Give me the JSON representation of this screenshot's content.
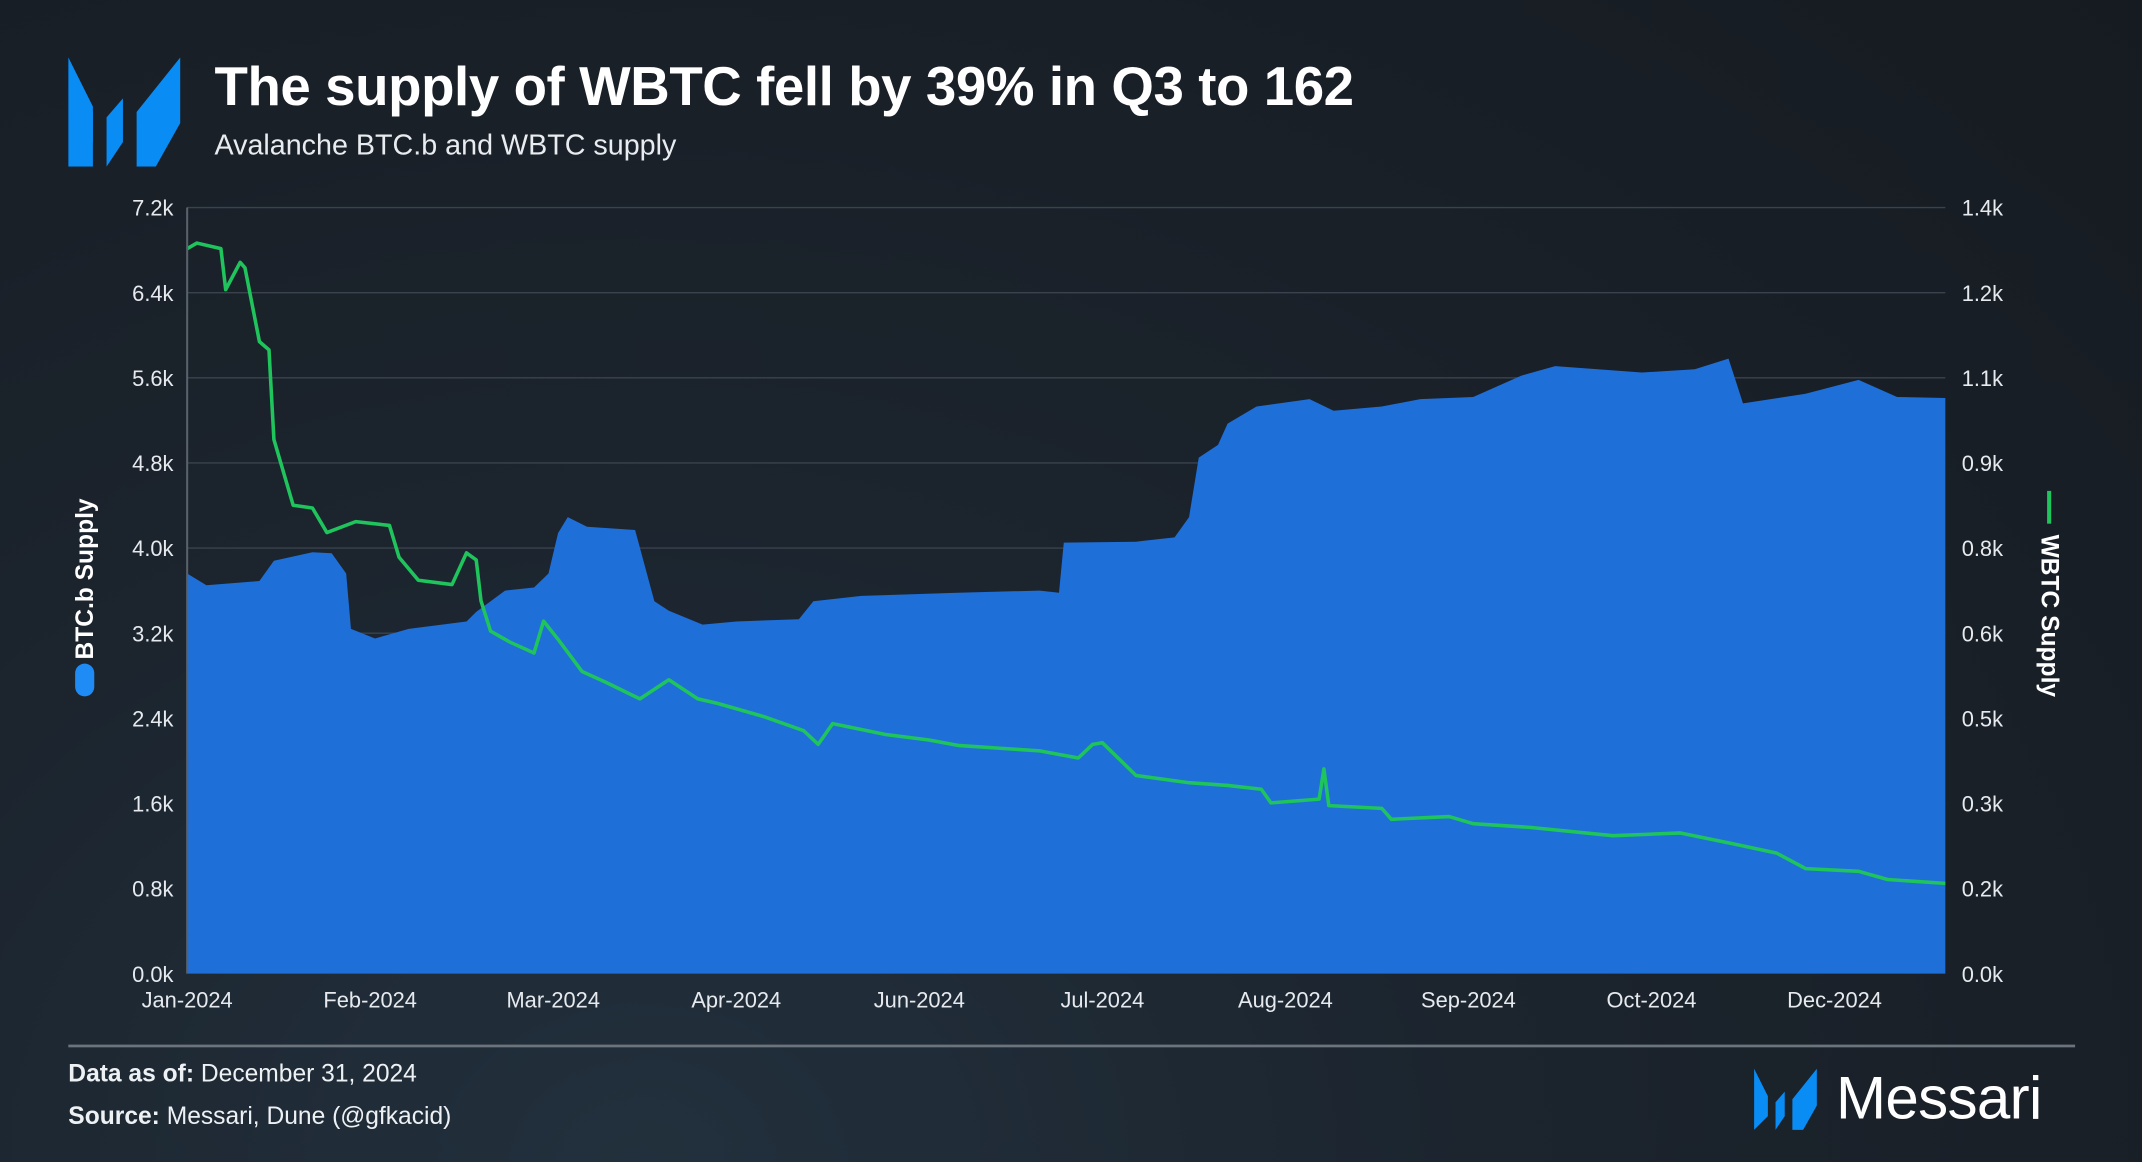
{
  "header": {
    "title": "The supply of WBTC fell by 39% in Q3 to 162",
    "subtitle": "Avalanche BTC.b and WBTC supply"
  },
  "footer": {
    "data_as_of_label": "Data as of:",
    "data_as_of_value": "December 31, 2024",
    "source_label": "Source:",
    "source_value": "Messari, Dune (@gfkacid)",
    "brand": "Messari"
  },
  "colors": {
    "btcb": "#1f6fd9",
    "wbtc": "#1fc45c",
    "logo": "#0a8cf5",
    "grid": "#3a434d"
  },
  "chart_data": {
    "type": "area+line",
    "title": "The supply of WBTC fell by 39% in Q3 to 162",
    "subtitle": "Avalanche BTC.b and WBTC supply",
    "x_unit": "day of 2024",
    "xlim": [
      0,
      365
    ],
    "x_ticks": [
      {
        "day": 0,
        "label": "Jan-2024"
      },
      {
        "day": 38,
        "label": "Feb-2024"
      },
      {
        "day": 76,
        "label": "Mar-2024"
      },
      {
        "day": 114,
        "label": "Apr-2024"
      },
      {
        "day": 152,
        "label": "Jun-2024"
      },
      {
        "day": 190,
        "label": "Jul-2024"
      },
      {
        "day": 228,
        "label": "Aug-2024"
      },
      {
        "day": 266,
        "label": "Sep-2024"
      },
      {
        "day": 304,
        "label": "Oct-2024"
      },
      {
        "day": 342,
        "label": "Dec-2024"
      }
    ],
    "y_left": {
      "label": "BTC.b Supply",
      "lim": [
        0,
        7200
      ],
      "ticks": [
        0,
        800,
        1600,
        2400,
        3200,
        4000,
        4800,
        5600,
        6400,
        7200
      ],
      "tick_labels": [
        "0.0k",
        "0.8k",
        "1.6k",
        "2.4k",
        "3.2k",
        "4.0k",
        "4.8k",
        "5.6k",
        "6.4k",
        "7.2k"
      ]
    },
    "y_right": {
      "label": "WBTC Supply",
      "lim": [
        0,
        1400
      ],
      "ticks": [
        0,
        200,
        300,
        500,
        600,
        800,
        900,
        1100,
        1200,
        1400
      ],
      "tick_labels": [
        "0.0k",
        "0.2k",
        "0.3k",
        "0.5k",
        "0.6k",
        "0.8k",
        "0.9k",
        "1.1k",
        "1.2k",
        "1.4k"
      ]
    },
    "grid": true,
    "series": [
      {
        "name": "BTC.b Supply",
        "axis": "left",
        "style": "area",
        "x": [
          0,
          4,
          15,
          18,
          26,
          30,
          33,
          34,
          39,
          46,
          58,
          60,
          66,
          72,
          75,
          77,
          79,
          83,
          93,
          97,
          100,
          107,
          114,
          127,
          130,
          140,
          160,
          177,
          181,
          182,
          197,
          205,
          208,
          210,
          214,
          216,
          222,
          233,
          238,
          248,
          256,
          267,
          277,
          284,
          302,
          313,
          320,
          323,
          336,
          347,
          355,
          365
        ],
        "y": [
          3760,
          3650,
          3690,
          3880,
          3960,
          3950,
          3760,
          3240,
          3150,
          3240,
          3310,
          3400,
          3600,
          3630,
          3760,
          4140,
          4290,
          4200,
          4170,
          3500,
          3410,
          3280,
          3310,
          3330,
          3500,
          3550,
          3580,
          3600,
          3580,
          4050,
          4060,
          4100,
          4290,
          4850,
          4970,
          5170,
          5330,
          5400,
          5290,
          5330,
          5400,
          5420,
          5620,
          5710,
          5650,
          5680,
          5780,
          5360,
          5450,
          5580,
          5420,
          5410
        ]
      },
      {
        "name": "WBTC Supply",
        "axis": "right",
        "style": "line",
        "x": [
          0,
          2,
          7,
          8,
          11,
          12,
          15,
          17,
          18,
          22,
          26,
          29,
          35,
          42,
          44,
          48,
          55,
          58,
          60,
          61,
          63,
          67,
          72,
          74,
          77,
          82,
          87,
          94,
          100,
          106,
          110,
          120,
          128,
          131,
          134,
          145,
          154,
          160,
          177,
          185,
          188,
          190,
          197,
          208,
          216,
          223,
          225,
          235,
          236,
          237,
          248,
          250,
          262,
          267,
          279,
          296,
          310,
          321,
          330,
          336,
          347,
          353,
          365
        ],
        "y": [
          1325,
          1335,
          1325,
          1250,
          1300,
          1290,
          1155,
          1140,
          976,
          856,
          851,
          806,
          826,
          819,
          761,
          719,
          711,
          769,
          756,
          681,
          626,
          606,
          586,
          644,
          611,
          552,
          532,
          502,
          537,
          502,
          494,
          469,
          444,
          419,
          457,
          437,
          427,
          417,
          407,
          394,
          419,
          422,
          362,
          349,
          344,
          337,
          312,
          319,
          374,
          307,
          302,
          282,
          287,
          274,
          267,
          252,
          257,
          237,
          220,
          192,
          187,
          172,
          165
        ]
      }
    ]
  }
}
